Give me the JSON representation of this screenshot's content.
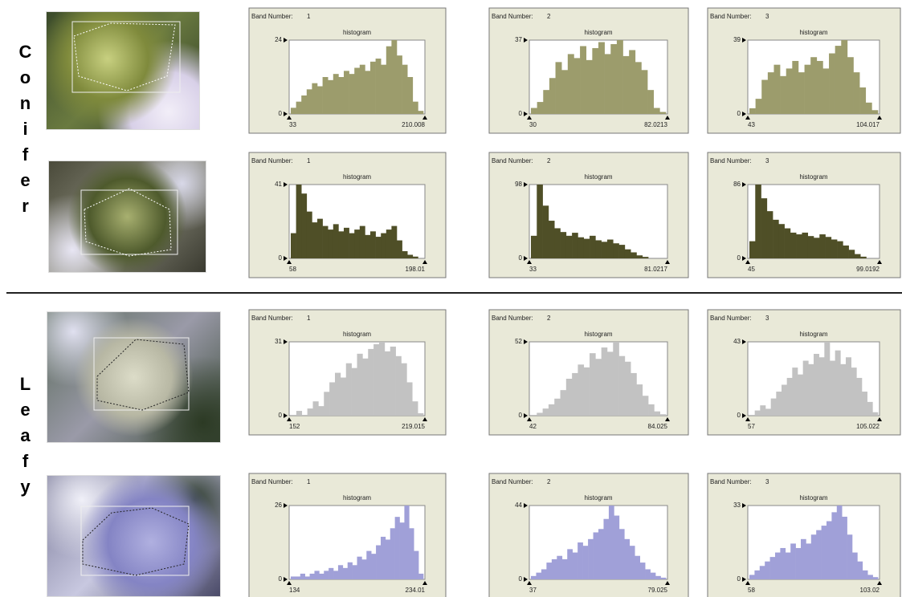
{
  "groups": [
    {
      "label": "Conifer",
      "samples": [
        {
          "panels": [
            {
              "type": "histogram",
              "band_label": "Band Number:",
              "band": 1,
              "title": "histogram",
              "color": "#9c9c6c",
              "ylim": [
                0,
                24
              ],
              "yticks": [
                0,
                24
              ],
              "xlim": [
                33,
                210.008
              ],
              "xticks": [
                33,
                210.008
              ],
              "values": [
                2,
                4,
                6,
                8,
                10,
                9,
                12,
                11,
                13,
                12,
                14,
                13,
                15,
                16,
                14,
                17,
                18,
                16,
                22,
                24,
                19,
                16,
                12,
                4,
                1
              ]
            },
            {
              "type": "histogram",
              "band_label": "Band Number:",
              "band": 2,
              "title": "histogram",
              "color": "#9c9c6c",
              "ylim": [
                0,
                37
              ],
              "yticks": [
                0,
                37
              ],
              "xlim": [
                30,
                82.0213
              ],
              "xticks": [
                30,
                82.0213
              ],
              "values": [
                3,
                6,
                12,
                18,
                26,
                22,
                30,
                28,
                34,
                27,
                33,
                36,
                30,
                35,
                37,
                29,
                32,
                26,
                22,
                12,
                3,
                1
              ]
            },
            {
              "type": "histogram",
              "band_label": "Band Number:",
              "band": 3,
              "title": "histogram",
              "color": "#9c9c6c",
              "ylim": [
                0,
                39
              ],
              "yticks": [
                0,
                39
              ],
              "xlim": [
                43,
                104.017
              ],
              "xticks": [
                43,
                104.017
              ],
              "values": [
                3,
                8,
                18,
                22,
                26,
                20,
                24,
                28,
                22,
                26,
                30,
                28,
                24,
                32,
                36,
                39,
                30,
                22,
                14,
                6,
                2
              ]
            }
          ]
        },
        {
          "panels": [
            {
              "type": "histogram",
              "band_label": "Band Number:",
              "band": 1,
              "title": "histogram",
              "color": "#4f4f27",
              "ylim": [
                0,
                41
              ],
              "yticks": [
                0,
                41
              ],
              "xlim": [
                58,
                198.01
              ],
              "xticks": [
                58,
                198.01
              ],
              "values": [
                14,
                41,
                36,
                26,
                20,
                22,
                18,
                16,
                19,
                15,
                17,
                14,
                16,
                18,
                13,
                15,
                12,
                14,
                16,
                18,
                10,
                4,
                2,
                1,
                0
              ]
            },
            {
              "type": "histogram",
              "band_label": "Band Number:",
              "band": 2,
              "title": "histogram",
              "color": "#4f4f27",
              "ylim": [
                0,
                98
              ],
              "yticks": [
                0,
                98
              ],
              "xlim": [
                33,
                81.0217
              ],
              "xticks": [
                33,
                81.0217
              ],
              "values": [
                30,
                98,
                70,
                50,
                40,
                35,
                30,
                34,
                28,
                26,
                30,
                24,
                22,
                25,
                20,
                18,
                12,
                8,
                4,
                2,
                0,
                0,
                0
              ]
            },
            {
              "type": "histogram",
              "band_label": "Band Number:",
              "band": 3,
              "title": "histogram",
              "color": "#4f4f27",
              "ylim": [
                0,
                86
              ],
              "yticks": [
                0,
                86
              ],
              "xlim": [
                45,
                99.0192
              ],
              "xticks": [
                45,
                99.0192
              ],
              "values": [
                20,
                86,
                70,
                55,
                45,
                40,
                35,
                30,
                28,
                30,
                26,
                24,
                28,
                25,
                22,
                20,
                15,
                10,
                5,
                2,
                0,
                0
              ]
            }
          ]
        }
      ]
    },
    {
      "label": "Leafy",
      "samples": [
        {
          "panels": [
            {
              "type": "histogram",
              "band_label": "Band Number:",
              "band": 1,
              "title": "histogram",
              "color": "#c2c2c2",
              "ylim": [
                0,
                31
              ],
              "yticks": [
                0,
                31
              ],
              "xlim": [
                152,
                219.015
              ],
              "xticks": [
                152,
                219.015
              ],
              "values": [
                0,
                2,
                0,
                3,
                6,
                4,
                10,
                14,
                18,
                16,
                22,
                20,
                26,
                24,
                28,
                30,
                31,
                27,
                29,
                25,
                22,
                14,
                6,
                1
              ]
            },
            {
              "type": "histogram",
              "band_label": "Band Number:",
              "band": 2,
              "title": "histogram",
              "color": "#c2c2c2",
              "ylim": [
                0,
                52
              ],
              "yticks": [
                0,
                52
              ],
              "xlim": [
                42,
                84.025
              ],
              "xticks": [
                42,
                84.025
              ],
              "values": [
                0,
                2,
                5,
                8,
                12,
                18,
                26,
                30,
                36,
                34,
                44,
                40,
                48,
                45,
                52,
                42,
                38,
                30,
                22,
                14,
                8,
                3,
                1
              ]
            },
            {
              "type": "histogram",
              "band_label": "Band Number:",
              "band": 3,
              "title": "histogram",
              "color": "#c2c2c2",
              "ylim": [
                0,
                43
              ],
              "yticks": [
                0,
                43
              ],
              "xlim": [
                57,
                105.022
              ],
              "xticks": [
                57,
                105.022
              ],
              "values": [
                0,
                3,
                6,
                4,
                10,
                14,
                18,
                22,
                28,
                24,
                32,
                30,
                36,
                34,
                43,
                32,
                38,
                30,
                34,
                28,
                22,
                14,
                8,
                2
              ]
            }
          ]
        },
        {
          "panels": [
            {
              "type": "histogram",
              "band_label": "Band Number:",
              "band": 1,
              "title": "histogram",
              "color": "#a0a0d8",
              "ylim": [
                0,
                26
              ],
              "yticks": [
                0,
                26
              ],
              "xlim": [
                134,
                234.01
              ],
              "xticks": [
                134,
                234.01
              ],
              "values": [
                1,
                1,
                2,
                1,
                2,
                3,
                2,
                3,
                4,
                3,
                5,
                4,
                6,
                5,
                8,
                7,
                10,
                9,
                12,
                15,
                14,
                18,
                22,
                20,
                26,
                18,
                10,
                2
              ]
            },
            {
              "type": "histogram",
              "band_label": "Band Number:",
              "band": 2,
              "title": "histogram",
              "color": "#a0a0d8",
              "ylim": [
                0,
                44
              ],
              "yticks": [
                0,
                44
              ],
              "xlim": [
                37,
                79.025
              ],
              "xticks": [
                37,
                79.025
              ],
              "values": [
                2,
                4,
                6,
                10,
                12,
                14,
                12,
                18,
                16,
                22,
                20,
                24,
                28,
                30,
                36,
                44,
                38,
                30,
                24,
                20,
                14,
                10,
                6,
                4,
                2,
                1
              ]
            },
            {
              "type": "histogram",
              "band_label": "Band Number:",
              "band": 3,
              "title": "histogram",
              "color": "#a0a0d8",
              "ylim": [
                0,
                33
              ],
              "yticks": [
                0,
                33
              ],
              "xlim": [
                58,
                103.02
              ],
              "xticks": [
                58,
                103.02
              ],
              "values": [
                2,
                4,
                6,
                8,
                10,
                12,
                14,
                12,
                16,
                14,
                18,
                16,
                20,
                22,
                24,
                26,
                30,
                33,
                28,
                20,
                12,
                8,
                4,
                2,
                1
              ]
            }
          ]
        }
      ]
    }
  ]
}
